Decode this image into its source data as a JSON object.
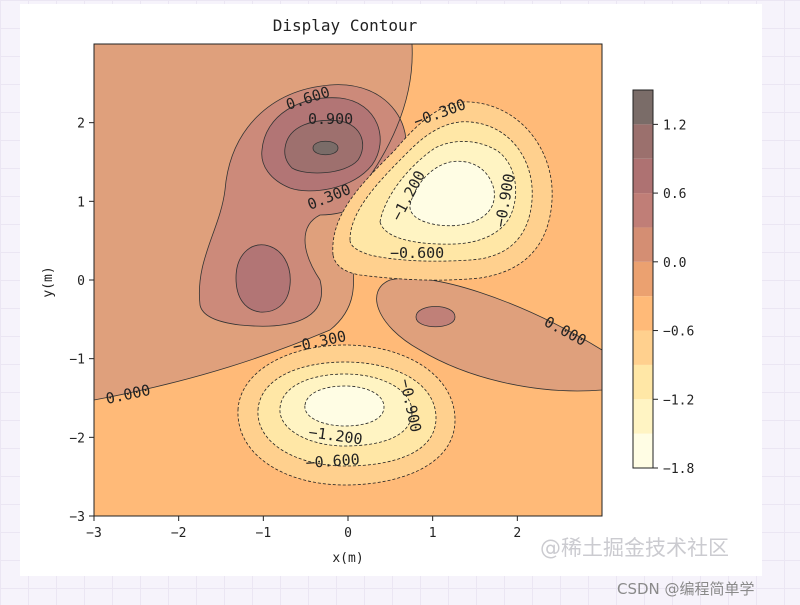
{
  "chart_data": {
    "type": "contour",
    "title": "Display Contour",
    "xlabel": "x(m)",
    "ylabel": "y(m)",
    "xlim": [
      -3,
      3
    ],
    "ylim": [
      -3,
      3
    ],
    "xticks": [
      "−3",
      "−2",
      "−1",
      "0",
      "1",
      "2"
    ],
    "yticks": [
      "−3",
      "−2",
      "−1",
      "0",
      "1",
      "2"
    ],
    "levels": [
      -1.8,
      -1.5,
      -1.2,
      -0.9,
      -0.6,
      -0.3,
      0.0,
      0.3,
      0.6,
      0.9,
      1.2,
      1.5
    ],
    "contour_labels": [
      "0.600",
      "0.900",
      "0.300",
      "−0.300",
      "−1.200",
      "−0.900",
      "−0.600",
      "0.000",
      "−0.300",
      "−1.200",
      "−0.900",
      "−0.600",
      "0.000"
    ],
    "colorbar": {
      "ticks": [
        "1.2",
        "0.6",
        "0.0",
        "−0.6",
        "−1.2",
        "−1.8"
      ],
      "colors": [
        "#fffde4",
        "#fff4c3",
        "#ffe7a6",
        "#ffd08e",
        "#ffba78",
        "#eba170",
        "#d48e73",
        "#c07e77",
        "#ae7272",
        "#9b706d",
        "#7a6c68"
      ]
    },
    "grid": false,
    "colormap": "afmhot_r"
  },
  "watermark": "@稀土掘金技术社区",
  "source": "CSDN @编程简单学"
}
